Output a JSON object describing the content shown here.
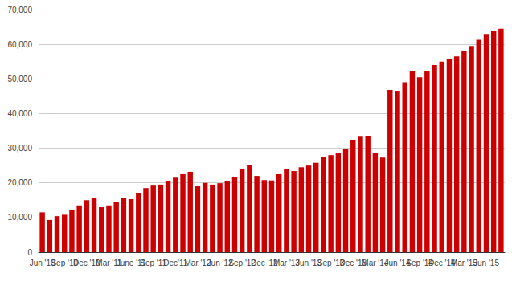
{
  "chart_data": {
    "type": "bar",
    "categories": [
      "Jun '10",
      null,
      null,
      "Sep '10",
      null,
      null,
      "Dec '10",
      null,
      null,
      "Mar '11",
      null,
      null,
      "June '11",
      null,
      null,
      "Sep '11",
      null,
      null,
      "Dec'11",
      null,
      null,
      "Mar '12",
      null,
      null,
      "Jun '12",
      null,
      null,
      "Sep '12",
      null,
      null,
      "Dec '12",
      null,
      null,
      "Mar '13",
      null,
      null,
      "Jun '13",
      null,
      null,
      "Sep '13",
      null,
      null,
      "Dec '13",
      null,
      null,
      "Mar '14",
      null,
      null,
      "Jun '14",
      null,
      null,
      "Sep '14",
      null,
      null,
      "Dec '14",
      null,
      null,
      "Mar '15",
      null,
      null,
      "Jun '15",
      null,
      null
    ],
    "values": [
      11500,
      9300,
      10400,
      10800,
      12300,
      13500,
      15000,
      15700,
      13000,
      13500,
      14500,
      15700,
      15300,
      17000,
      18500,
      19200,
      19500,
      20500,
      21500,
      22500,
      23200,
      19000,
      20000,
      19500,
      19900,
      20500,
      21700,
      24000,
      25200,
      22000,
      20800,
      20700,
      22500,
      24000,
      23400,
      24500,
      25000,
      25800,
      27500,
      28000,
      28500,
      29700,
      32300,
      33300,
      33600,
      28700,
      27300,
      46800,
      46600,
      49000,
      52200,
      50500,
      52200,
      54000,
      55000,
      55800,
      56500,
      58000,
      59500,
      61300,
      63000,
      63800,
      64500
    ],
    "color": "#cc0000",
    "ylim": [
      0,
      70000
    ],
    "yticks": [
      0,
      {
        "value": 10000,
        "label": "10,000"
      },
      {
        "value": 20000,
        "label": "20,000"
      },
      {
        "value": 30000,
        "label": "30,000"
      },
      {
        "value": 40000,
        "label": "40,000"
      },
      {
        "value": 50000,
        "label": "50,000"
      },
      {
        "value": 60000,
        "label": "60,000"
      },
      {
        "value": 70000,
        "label": "70,000"
      }
    ],
    "grid": true
  }
}
